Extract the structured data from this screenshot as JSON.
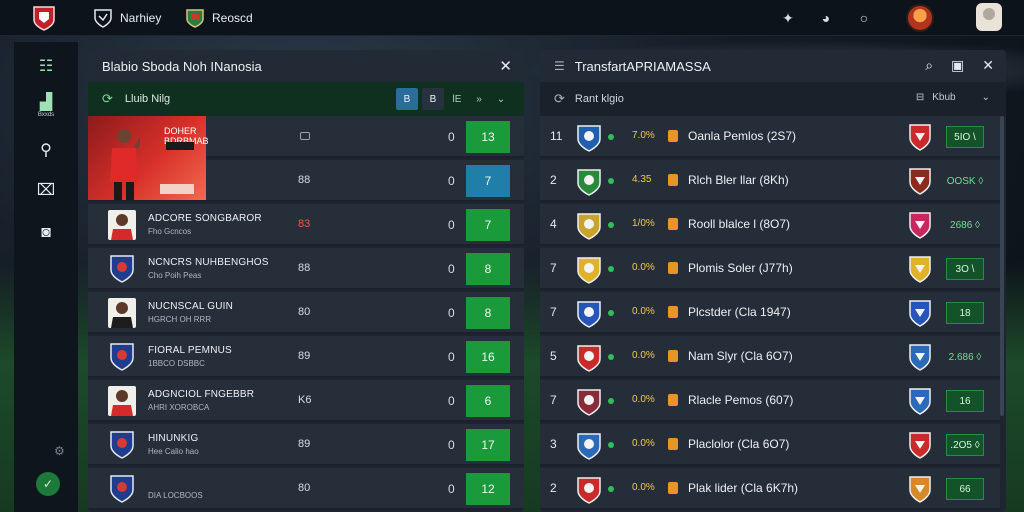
{
  "topbar": {
    "nav": [
      {
        "label": "Narhiey",
        "icon": "shield-icon"
      },
      {
        "label": "Reoscd",
        "icon": "crest-icon"
      }
    ],
    "icons": [
      "star-icon",
      "chat-icon",
      "circle-icon"
    ]
  },
  "sidebar": {
    "items": [
      {
        "label": "",
        "icon": "grid-icon"
      },
      {
        "label": "Bxxds",
        "icon": "chart-icon"
      },
      {
        "label": "",
        "icon": "whistle-icon"
      },
      {
        "label": "",
        "icon": "kit-icon"
      },
      {
        "label": "",
        "icon": "controller-icon"
      }
    ]
  },
  "left_panel": {
    "title": "Blabio Sboda Noh INanosia",
    "subtitle": "Lluib Nilg",
    "buttons": [
      "B",
      "B",
      "lE",
      "»",
      "⌄"
    ],
    "hero_name": "DOHER BDRBMAB",
    "rows": [
      {
        "name": "",
        "sub": "",
        "mid": "",
        "zero": "0",
        "score": "13",
        "color": "green"
      },
      {
        "name": "",
        "sub": "",
        "mid": "88",
        "zero": "0",
        "score": "7",
        "color": "blue"
      },
      {
        "name": "ADCORE SONGBAROR",
        "sub": "Fho Gcncos",
        "mid": "83",
        "zero": "0",
        "score": "7",
        "color": "green"
      },
      {
        "name": "NCNCRS NUHBENGHOS",
        "sub": "Cho Poih Peas",
        "mid": "88",
        "zero": "0",
        "score": "8",
        "color": "green"
      },
      {
        "name": "NUCNSCAL GUIN",
        "sub": "HGRCH OH RRR",
        "mid": "80",
        "zero": "0",
        "score": "8",
        "color": "green"
      },
      {
        "name": "FIORAL PEMNUS",
        "sub": "1BBCO DSBBC",
        "mid": "89",
        "zero": "0",
        "score": "16",
        "color": "green"
      },
      {
        "name": "ADGNCIOL FNGEBBR",
        "sub": "AHRI XOROBCA",
        "mid": "K6",
        "zero": "0",
        "score": "6",
        "color": "green"
      },
      {
        "name": "HINUNKIG",
        "sub": "Hee Calio hao",
        "mid": "89",
        "zero": "0",
        "score": "17",
        "color": "green"
      },
      {
        "name": "",
        "sub": "DIA LOCBOOS",
        "mid": "80",
        "zero": "0",
        "score": "12",
        "color": "green"
      }
    ]
  },
  "right_panel": {
    "title": "TransfartAPRIAMASSA",
    "subtitle": "Rant klgio",
    "filter": "Kbub",
    "rows": [
      {
        "rank": "11",
        "pct": "7.0%",
        "player": "Oanla Pemlos (2S7)",
        "val": "5IO \\",
        "val_style": "box"
      },
      {
        "rank": "2",
        "pct": "4.35",
        "player": "Rlch Bler llar (8Kh)",
        "val": "OOSK ◊",
        "val_style": "plain"
      },
      {
        "rank": "4",
        "pct": "1/0%",
        "player": "Rooll blalce l (8O7)",
        "val": "2686 ◊",
        "val_style": "plain"
      },
      {
        "rank": "7",
        "pct": "0.0%",
        "player": "Plomis Soler (J77h)",
        "val": "3O \\",
        "val_style": "box"
      },
      {
        "rank": "7",
        "pct": "0.0%",
        "player": "Plcstder (Cla 1947)",
        "val": "18",
        "val_style": "box"
      },
      {
        "rank": "5",
        "pct": "0.0%",
        "player": "Nam Slyr (Cla 6O7)",
        "val": "2.686 ◊",
        "val_style": "plain"
      },
      {
        "rank": "7",
        "pct": "0.0%",
        "player": "Rlacle Pemos (607)",
        "val": "16",
        "val_style": "box"
      },
      {
        "rank": "3",
        "pct": "0.0%",
        "player": "Placlolor (Cla 6O7)",
        "val": ".2O5 ◊",
        "val_style": "box"
      },
      {
        "rank": "2",
        "pct": "0.0%",
        "player": "Plak lider (Cla 6K7h)",
        "val": "66",
        "val_style": "box"
      }
    ]
  },
  "colors": {
    "accent": "#1b9a3b",
    "blue_score": "#1f7fa9",
    "bg_panel": "#1e2530"
  }
}
